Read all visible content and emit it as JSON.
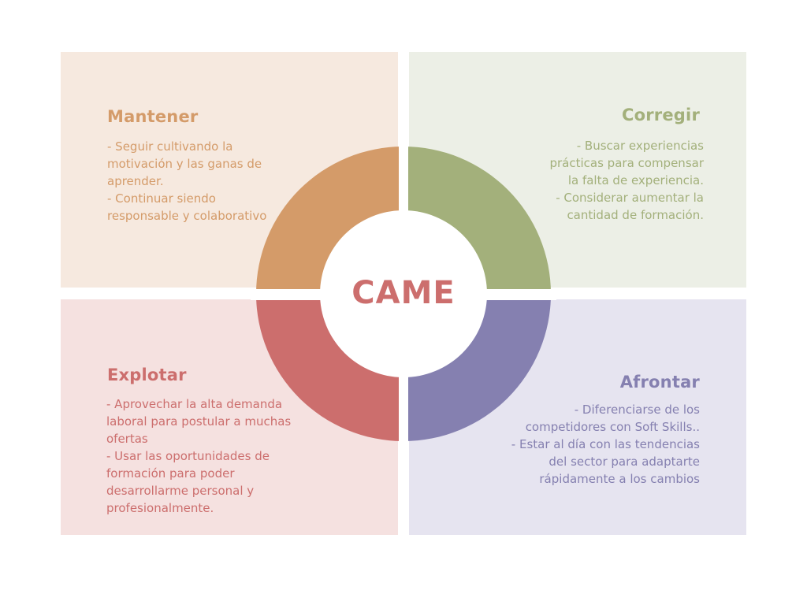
{
  "center_label": "CAME",
  "colors": {
    "mantener": "#d49b69",
    "corregir": "#a3b07b",
    "explotar": "#cc6e6d",
    "afrontar": "#8580b0"
  },
  "mantener": {
    "title": "Mantener",
    "lines": [
      "- Seguir cultivando la motivación y las ganas de aprender.",
      "- Continuar siendo responsable y colaborativo"
    ]
  },
  "corregir": {
    "title": "Corregir",
    "lines": [
      "- Buscar experiencias prácticas para compensar la falta de experiencia.",
      "- Considerar aumentar la cantidad de formación."
    ]
  },
  "explotar": {
    "title": "Explotar",
    "lines": [
      "- Aprovechar la alta demanda laboral para postular a muchas ofertas",
      "- Usar las oportunidades de formación para poder desarrollarme personal y profesionalmente."
    ]
  },
  "afrontar": {
    "title": "Afrontar",
    "lines": [
      "- Diferenciarse de los competidores con Soft Skills..",
      "- Estar al día con las tendencias del sector para adaptarte rápidamente a los cambios"
    ]
  }
}
